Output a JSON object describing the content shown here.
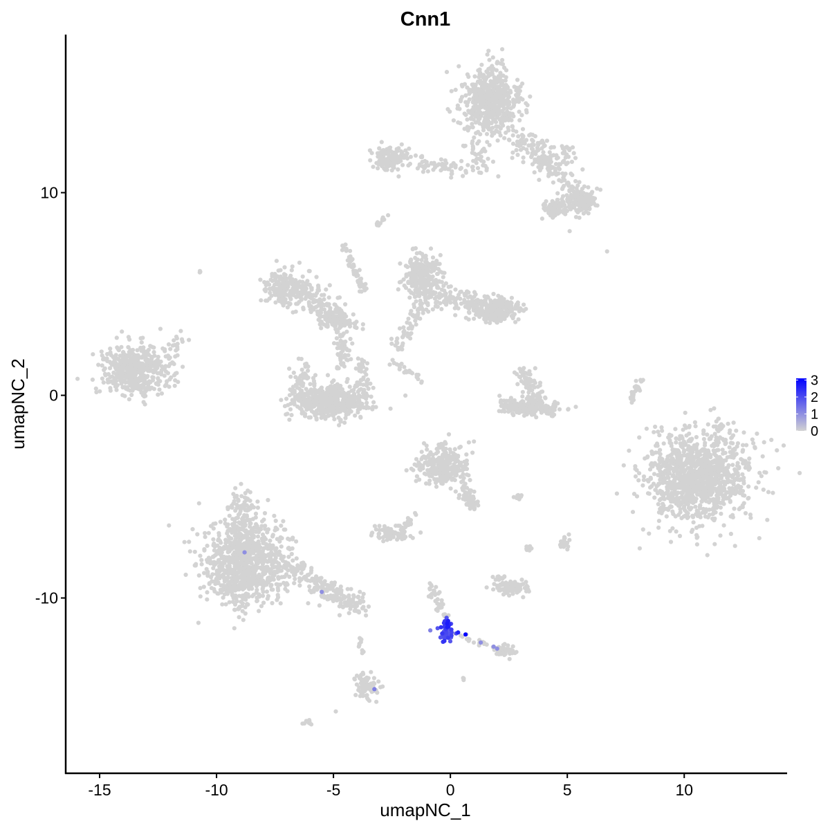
{
  "chart_data": {
    "type": "scatter",
    "title": "Cnn1",
    "xlabel": "umapNC_1",
    "ylabel": "umapNC_2",
    "xlim": [
      -16.45,
      14.4
    ],
    "ylim": [
      -18.65,
      17.8
    ],
    "xticks": [
      -15,
      -10,
      -5,
      0,
      5,
      10
    ],
    "yticks": [
      -10,
      0,
      10
    ],
    "grid": false,
    "legend": {
      "placement": "right",
      "type": "colorbar",
      "ticks": [
        0,
        1,
        2,
        3
      ],
      "range": [
        0,
        3.1
      ]
    },
    "colors": {
      "low": "#D3D3D3",
      "high": "#0000FF"
    },
    "note_points": "clusters are approximate point groups in data units; value = expression",
    "clusters": [
      {
        "type": "blob",
        "center": [
          1.7,
          14.5
        ],
        "sd": [
          0.6,
          0.85
        ],
        "n": 600,
        "value": 0
      },
      {
        "type": "line",
        "from": [
          2.8,
          12.8
        ],
        "to": [
          5.6,
          9.8
        ],
        "width": 0.35,
        "n": 160,
        "value": 0
      },
      {
        "type": "blob",
        "center": [
          5.6,
          9.6
        ],
        "sd": [
          0.3,
          0.3
        ],
        "n": 150,
        "value": 0
      },
      {
        "type": "blob",
        "center": [
          4.4,
          9.2
        ],
        "sd": [
          0.3,
          0.25
        ],
        "n": 80,
        "value": 0
      },
      {
        "type": "line",
        "from": [
          3.2,
          12.4
        ],
        "to": [
          5.3,
          11.7
        ],
        "width": 0.3,
        "n": 60,
        "value": 0
      },
      {
        "type": "blob",
        "center": [
          -2.5,
          11.7
        ],
        "sd": [
          0.4,
          0.3
        ],
        "n": 150,
        "value": 0
      },
      {
        "type": "line",
        "from": [
          -1.5,
          11.5
        ],
        "to": [
          0.8,
          11.1
        ],
        "width": 0.2,
        "n": 60,
        "value": 0
      },
      {
        "type": "line",
        "from": [
          0.9,
          12.7
        ],
        "to": [
          1.5,
          11.0
        ],
        "width": 0.2,
        "n": 40,
        "value": 0
      },
      {
        "type": "line",
        "from": [
          -3.2,
          8.4
        ],
        "to": [
          -2.7,
          8.8
        ],
        "width": 0.08,
        "n": 10,
        "value": 0
      },
      {
        "type": "blob",
        "center": [
          -13.5,
          1.2
        ],
        "sd": [
          0.7,
          0.6
        ],
        "n": 500,
        "value": 0
      },
      {
        "type": "line",
        "from": [
          -12.5,
          1.6
        ],
        "to": [
          -11.5,
          2.8
        ],
        "width": 0.2,
        "n": 25,
        "value": 0
      },
      {
        "type": "blob",
        "center": [
          -7.2,
          5.3
        ],
        "sd": [
          0.35,
          0.4
        ],
        "n": 130,
        "value": 0
      },
      {
        "type": "line",
        "from": [
          -7.3,
          5.8
        ],
        "to": [
          -4.5,
          3.7
        ],
        "width": 0.35,
        "n": 200,
        "value": 0
      },
      {
        "type": "blob",
        "center": [
          -4.8,
          3.6
        ],
        "sd": [
          0.4,
          0.2
        ],
        "n": 100,
        "value": 0
      },
      {
        "type": "blob",
        "center": [
          -5.2,
          -0.3
        ],
        "sd": [
          0.8,
          0.4
        ],
        "n": 500,
        "value": 0
      },
      {
        "type": "line",
        "from": [
          -6.5,
          -0.2
        ],
        "to": [
          -6.3,
          1.5
        ],
        "width": 0.2,
        "n": 50,
        "value": 0
      },
      {
        "type": "line",
        "from": [
          -3.9,
          -0.2
        ],
        "to": [
          -3.7,
          2.0
        ],
        "width": 0.2,
        "n": 50,
        "value": 0
      },
      {
        "type": "line",
        "from": [
          -4.6,
          3.3
        ],
        "to": [
          -4.6,
          1.3
        ],
        "width": 0.15,
        "n": 60,
        "value": 0
      },
      {
        "type": "line",
        "from": [
          -4.6,
          7.5
        ],
        "to": [
          -3.7,
          5.1
        ],
        "width": 0.08,
        "n": 50,
        "value": 0
      },
      {
        "type": "blob",
        "center": [
          -1.2,
          5.8
        ],
        "sd": [
          0.4,
          0.6
        ],
        "n": 250,
        "value": 0
      },
      {
        "type": "blob",
        "center": [
          2.0,
          4.2
        ],
        "sd": [
          0.5,
          0.3
        ],
        "n": 200,
        "value": 0
      },
      {
        "type": "line",
        "from": [
          -1.2,
          5.0
        ],
        "to": [
          2.0,
          4.4
        ],
        "width": 0.35,
        "n": 150,
        "value": 0
      },
      {
        "type": "line",
        "from": [
          -1.2,
          4.5
        ],
        "to": [
          -2.2,
          2.4
        ],
        "width": 0.2,
        "n": 60,
        "value": 0
      },
      {
        "type": "line",
        "from": [
          -2.5,
          1.7
        ],
        "to": [
          -1.2,
          0.7
        ],
        "width": 0.08,
        "n": 25,
        "value": 0
      },
      {
        "type": "blob",
        "center": [
          3.5,
          -0.65
        ],
        "sd": [
          0.6,
          0.2
        ],
        "n": 150,
        "value": 0
      },
      {
        "type": "line",
        "from": [
          3.1,
          1.1
        ],
        "to": [
          3.8,
          -0.3
        ],
        "width": 0.2,
        "n": 80,
        "value": 0
      },
      {
        "type": "line",
        "from": [
          2.0,
          -0.3
        ],
        "to": [
          3.3,
          -0.8
        ],
        "width": 0.12,
        "n": 40,
        "value": 0
      },
      {
        "type": "line",
        "from": [
          7.7,
          -0.3
        ],
        "to": [
          8.2,
          0.9
        ],
        "width": 0.08,
        "n": 25,
        "value": 0
      },
      {
        "type": "blob",
        "center": [
          10.7,
          -4.0
        ],
        "sd": [
          1.1,
          1.1
        ],
        "n": 1200,
        "value": 0
      },
      {
        "type": "blob",
        "center": [
          -0.3,
          -3.5
        ],
        "sd": [
          0.55,
          0.5
        ],
        "n": 300,
        "value": 0
      },
      {
        "type": "line",
        "from": [
          0.5,
          -4.5
        ],
        "to": [
          1.1,
          -5.6
        ],
        "width": 0.15,
        "n": 60,
        "value": 0
      },
      {
        "type": "blob",
        "center": [
          -2.4,
          -6.8
        ],
        "sd": [
          0.4,
          0.2
        ],
        "n": 80,
        "value": 0
      },
      {
        "type": "line",
        "from": [
          -2.0,
          -6.6
        ],
        "to": [
          -1.5,
          -5.8
        ],
        "width": 0.08,
        "n": 15,
        "value": 0
      },
      {
        "type": "blob",
        "center": [
          -8.7,
          -8.3
        ],
        "sd": [
          0.9,
          1.0
        ],
        "n": 900,
        "value": 0
      },
      {
        "type": "line",
        "from": [
          -8.9,
          -5.1
        ],
        "to": [
          -8.9,
          -7.8
        ],
        "width": 0.4,
        "n": 150,
        "value": 0
      },
      {
        "type": "line",
        "from": [
          -6.8,
          -8.5
        ],
        "to": [
          -3.9,
          -10.5
        ],
        "width": 0.3,
        "n": 200,
        "value": 0
      },
      {
        "type": "blob",
        "center": [
          2.6,
          -9.5
        ],
        "sd": [
          0.4,
          0.15
        ],
        "n": 80,
        "value": 0
      },
      {
        "type": "blob",
        "center": [
          2.1,
          -9.0
        ],
        "sd": [
          0.15,
          0.1
        ],
        "n": 12,
        "value": 0
      },
      {
        "type": "blob",
        "center": [
          4.9,
          -7.3
        ],
        "sd": [
          0.15,
          0.15
        ],
        "n": 20,
        "value": 0
      },
      {
        "type": "blob",
        "center": [
          3.4,
          -7.6
        ],
        "sd": [
          0.1,
          0.1
        ],
        "n": 8,
        "value": 0
      },
      {
        "type": "blob",
        "center": [
          2.8,
          -5.0
        ],
        "sd": [
          0.15,
          0.05
        ],
        "n": 8,
        "value": 0
      },
      {
        "type": "line",
        "from": [
          -0.9,
          -9.2
        ],
        "to": [
          -0.2,
          -11.2
        ],
        "width": 0.1,
        "n": 40,
        "value": 0
      },
      {
        "type": "line",
        "from": [
          0.0,
          -11.7
        ],
        "to": [
          2.2,
          -12.6
        ],
        "width": 0.08,
        "n": 25,
        "value": 0
      },
      {
        "type": "blob",
        "center": [
          2.35,
          -12.6
        ],
        "sd": [
          0.2,
          0.15
        ],
        "n": 40,
        "value": 0
      },
      {
        "type": "blob",
        "center": [
          -3.6,
          -14.3
        ],
        "sd": [
          0.25,
          0.35
        ],
        "n": 80,
        "value": 0
      },
      {
        "type": "line",
        "from": [
          -3.9,
          -11.9
        ],
        "to": [
          -3.6,
          -13.6
        ],
        "width": 0.05,
        "n": 10,
        "value": 0
      },
      {
        "type": "blob",
        "center": [
          -6.1,
          -16.1
        ],
        "sd": [
          0.1,
          0.07
        ],
        "n": 10,
        "value": 0
      },
      {
        "type": "blob",
        "center": [
          -10.7,
          6.1
        ],
        "sd": [
          0.05,
          0.05
        ],
        "n": 5,
        "value": 0
      },
      {
        "type": "blob",
        "center": [
          0.6,
          -14.0
        ],
        "sd": [
          0.05,
          0.05
        ],
        "n": 4,
        "value": 0
      },
      {
        "type": "blob",
        "center": [
          -0.2,
          -11.6
        ],
        "sd": [
          0.12,
          0.3
        ],
        "n": 45,
        "value": 2.0
      },
      {
        "type": "blob",
        "center": [
          -0.1,
          -11.3
        ],
        "sd": [
          0.08,
          0.1
        ],
        "n": 8,
        "value": 2.6
      }
    ],
    "points": [
      {
        "x": 6.7,
        "y": 7.1,
        "value": 0
      },
      {
        "x": 5.1,
        "y": 8.1,
        "value": 0
      },
      {
        "x": -4.9,
        "y": -15.6,
        "value": 0
      },
      {
        "x": -8.8,
        "y": -7.75,
        "value": 1.0
      },
      {
        "x": -5.5,
        "y": -9.7,
        "value": 1.0
      },
      {
        "x": -3.25,
        "y": -14.5,
        "value": 1.2
      },
      {
        "x": -0.86,
        "y": -11.6,
        "value": 1.2
      },
      {
        "x": 0.33,
        "y": -11.7,
        "value": 2.6
      },
      {
        "x": 0.25,
        "y": -11.75,
        "value": 2.0
      },
      {
        "x": 0.65,
        "y": -11.8,
        "value": 3.1
      },
      {
        "x": 1.3,
        "y": -12.2,
        "value": 1.0
      },
      {
        "x": 1.85,
        "y": -12.4,
        "value": 1.0
      },
      {
        "x": 2.0,
        "y": -12.5,
        "value": 1.0
      }
    ]
  }
}
